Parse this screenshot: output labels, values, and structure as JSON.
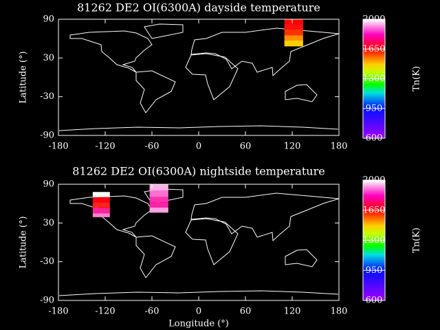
{
  "chart_data": [
    {
      "type": "map",
      "title": "81262 DE2 OI(6300A) dayside temperature",
      "ylabel": "Latitude (°)",
      "xlim": [
        -180,
        180
      ],
      "xticks": [
        -180,
        -120,
        -60,
        0,
        60,
        120,
        180
      ],
      "ylim": [
        -90,
        90
      ],
      "yticks": [
        -90,
        -30,
        30,
        90
      ],
      "colorbar": {
        "label": "Tn(K)",
        "lim": [
          600,
          2000
        ],
        "ticks": [
          600,
          950,
          1300,
          1650,
          2000
        ]
      },
      "cells": [
        {
          "lon": [
            110,
            134
          ],
          "lat": [
            82,
            90
          ],
          "value": 1700,
          "color": "#ff0000"
        },
        {
          "lon": [
            110,
            134
          ],
          "lat": [
            74,
            82
          ],
          "value": 1680,
          "color": "#ff1010"
        },
        {
          "lon": [
            110,
            134
          ],
          "lat": [
            65,
            74
          ],
          "value": 1600,
          "color": "#ff3000"
        },
        {
          "lon": [
            110,
            134
          ],
          "lat": [
            57,
            65
          ],
          "value": 1500,
          "color": "#ff9000"
        },
        {
          "lon": [
            110,
            134
          ],
          "lat": [
            48,
            57
          ],
          "value": 1420,
          "color": "#ffd000"
        }
      ]
    },
    {
      "type": "map",
      "title": "81262 DE2 OI(6300A) nightside temperature",
      "xlabel": "Longitude (°)",
      "ylabel": "Latitude (°)",
      "xlim": [
        -180,
        180
      ],
      "xticks": [
        -180,
        -120,
        -60,
        0,
        60,
        120,
        180
      ],
      "ylim": [
        -90,
        90
      ],
      "yticks": [
        -90,
        -30,
        30,
        90
      ],
      "colorbar": {
        "label": "Tn(K)",
        "lim": [
          600,
          2000
        ],
        "ticks": [
          600,
          950,
          1300,
          1650,
          2000
        ]
      },
      "cells": [
        {
          "lon": [
            -136,
            -114
          ],
          "lat": [
            70,
            78
          ],
          "value": 2000,
          "color": "#ffffff"
        },
        {
          "lon": [
            -136,
            -114
          ],
          "lat": [
            62,
            70
          ],
          "value": 1700,
          "color": "#ff0010"
        },
        {
          "lon": [
            -136,
            -114
          ],
          "lat": [
            53,
            62
          ],
          "value": 1660,
          "color": "#ff2020"
        },
        {
          "lon": [
            -136,
            -114
          ],
          "lat": [
            45,
            53
          ],
          "value": 1850,
          "color": "#ff20a0"
        },
        {
          "lon": [
            -136,
            -114
          ],
          "lat": [
            39,
            45
          ],
          "value": 1920,
          "color": "#ff80d0"
        },
        {
          "lon": [
            -63,
            -39
          ],
          "lat": [
            80,
            90
          ],
          "value": 1960,
          "color": "#ffb0e8"
        },
        {
          "lon": [
            -63,
            -39
          ],
          "lat": [
            70,
            80
          ],
          "value": 1900,
          "color": "#ff70d0"
        },
        {
          "lon": [
            -63,
            -39
          ],
          "lat": [
            62,
            70
          ],
          "value": 1850,
          "color": "#ff30b0"
        },
        {
          "lon": [
            -63,
            -39
          ],
          "lat": [
            54,
            62
          ],
          "value": 1820,
          "color": "#ff20a8"
        },
        {
          "lon": [
            -63,
            -39
          ],
          "lat": [
            46,
            54
          ],
          "value": 1940,
          "color": "#ffa0e0"
        }
      ]
    }
  ]
}
